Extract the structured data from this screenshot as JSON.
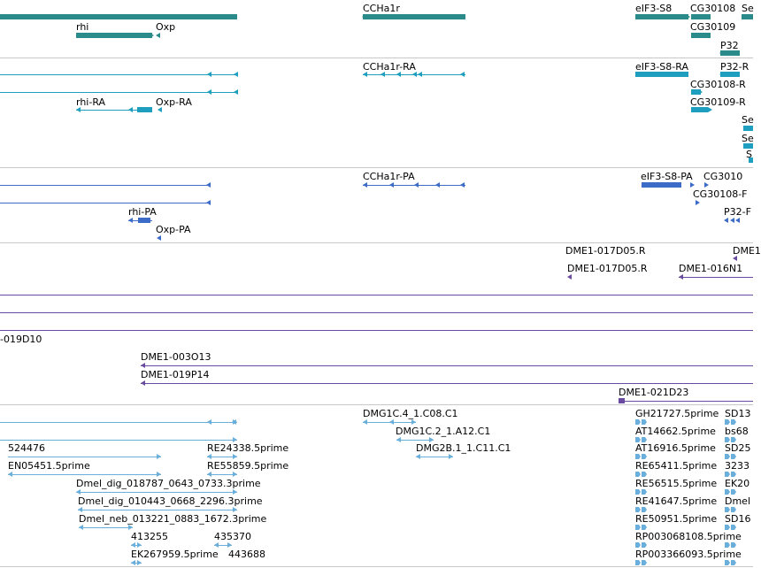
{
  "colors": {
    "gene": "#2b8a8a",
    "transcript": "#1f9fbf",
    "protein": "#3c6cc8",
    "clone": "#6a4aa0",
    "est": "#6aaedc",
    "separator": "#c8c8c8"
  },
  "tracks": {
    "gene": {
      "labels": [
        "CCHa1r",
        "eIF3-S8",
        "CG30108",
        "Se",
        "rhi",
        "Oxp",
        "CG30109",
        "P32"
      ]
    },
    "transcript": {
      "labels": [
        "CCHa1r-RA",
        "eIF3-S8-RA",
        "P32-R",
        "CG30108-R",
        "rhi-RA",
        "Oxp-RA",
        "CG30109-R",
        "Se",
        "Se",
        "S"
      ]
    },
    "protein": {
      "labels": [
        "CCHa1r-PA",
        "eIF3-S8-PA",
        "CG3010",
        "CG30108-F",
        "rhi-PA",
        "P32-F",
        "Oxp-PA"
      ]
    },
    "clone": {
      "labels": [
        "DME1-017D05.R",
        "DME1",
        "DME1-017D05.R",
        "DME1-016N1",
        "-019D10",
        "DME1-003O13",
        "DME1-019P14",
        "DME1-021D23"
      ]
    },
    "est": {
      "labels": [
        "DMG1C.4_1.C08.C1",
        "GH21727.5prime",
        "SD13",
        "DMG1C.2_1.A12.C1",
        "AT14662.5prime",
        "bs68",
        "524476",
        "RE24338.5prime",
        "DMG2B.1_1.C11.C1",
        "AT16916.5prime",
        "SD25",
        "EN05451.5prime",
        "RE55859.5prime",
        "RE65411.5prime",
        "3233",
        "Dmel_dig_018787_0643_0733.3prime",
        "RE56515.5prime",
        "EK20",
        "Dmel_dig_010443_0668_2296.3prime",
        "RE41647.5prime",
        "Dmel",
        "Dmel_neb_013221_0883_1672.3prime",
        "RE50951.5prime",
        "SD16",
        "413255",
        "435370",
        "RP003068108.5prime",
        "EK267959.5prime",
        "443688",
        "RP003366093.5prime"
      ]
    }
  }
}
